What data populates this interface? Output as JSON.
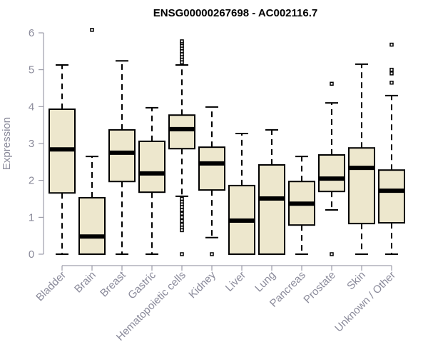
{
  "chart_data": {
    "type": "box",
    "title": "ENSG00000267698 - AC002116.7",
    "xlabel": "",
    "ylabel": "Expression",
    "ylim": [
      0,
      6
    ],
    "yticks": [
      0,
      1,
      2,
      3,
      4,
      5,
      6
    ],
    "box_color": "#ede7cd",
    "categories": [
      "Bladder",
      "Brain",
      "Breast",
      "Gastric",
      "Hematopoietic cells",
      "Kidney",
      "Liver",
      "Lung",
      "Pancreas",
      "Prostate",
      "Skin",
      "Unknown / Other"
    ],
    "boxes": [
      {
        "low": 0,
        "q1": 1.66,
        "median": 2.84,
        "q3": 3.93,
        "high": 5.13,
        "outliers": []
      },
      {
        "low": 0,
        "q1": 0,
        "median": 0.48,
        "q3": 1.53,
        "high": 2.65,
        "outliers": [
          6.08
        ]
      },
      {
        "low": 0,
        "q1": 1.97,
        "median": 2.75,
        "q3": 3.37,
        "high": 5.24,
        "outliers": []
      },
      {
        "low": 0,
        "q1": 1.68,
        "median": 2.19,
        "q3": 3.06,
        "high": 3.97,
        "outliers": []
      },
      {
        "low": 1.57,
        "q1": 2.86,
        "median": 3.39,
        "q3": 3.77,
        "high": 5.13,
        "outliers": [
          5.2,
          5.28,
          5.35,
          5.42,
          5.5,
          5.58,
          5.65,
          5.72,
          5.77,
          1.5,
          1.42,
          1.35,
          1.28,
          1.2,
          1.1,
          1.0,
          0.9,
          0.8,
          0.72,
          0.65,
          0
        ]
      },
      {
        "low": 0.45,
        "q1": 1.74,
        "median": 2.46,
        "q3": 2.9,
        "high": 3.99,
        "outliers": [
          0
        ]
      },
      {
        "low": 0,
        "q1": 0,
        "median": 0.91,
        "q3": 1.86,
        "high": 3.27,
        "outliers": []
      },
      {
        "low": 0,
        "q1": 0,
        "median": 1.51,
        "q3": 2.42,
        "high": 3.37,
        "outliers": []
      },
      {
        "low": 0,
        "q1": 0.79,
        "median": 1.37,
        "q3": 1.97,
        "high": 2.65,
        "outliers": []
      },
      {
        "low": 1.2,
        "q1": 1.7,
        "median": 2.05,
        "q3": 2.69,
        "high": 4.1,
        "outliers": [
          4.62,
          0
        ]
      },
      {
        "low": 0,
        "q1": 0.83,
        "median": 2.34,
        "q3": 2.88,
        "high": 5.15,
        "outliers": []
      },
      {
        "low": 0,
        "q1": 0.85,
        "median": 1.72,
        "q3": 2.28,
        "high": 4.3,
        "outliers": [
          5.68,
          5.0,
          4.9,
          4.65
        ]
      }
    ]
  }
}
